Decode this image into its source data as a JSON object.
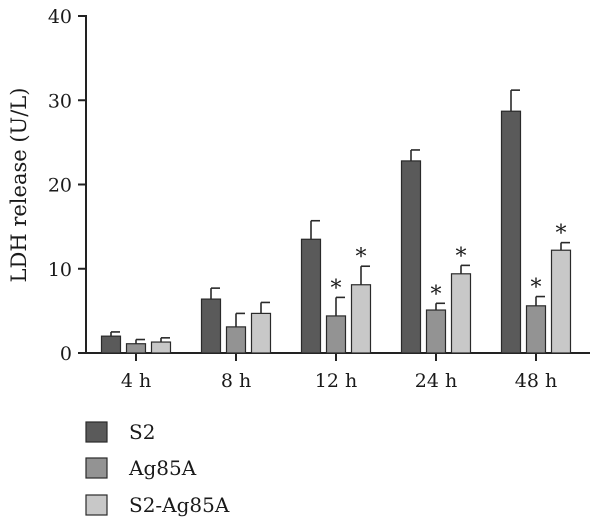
{
  "chart_data": {
    "type": "bar",
    "title": "",
    "xlabel": "",
    "ylabel": "LDH release (U/L)",
    "ylim": [
      0,
      40
    ],
    "yticks": [
      "0",
      "10",
      "20",
      "30",
      "40"
    ],
    "categories": [
      "4 h",
      "8 h",
      "12 h",
      "24 h",
      "48 h"
    ],
    "series": [
      {
        "name": "S2",
        "color": "#5a5a5a",
        "values": [
          2.0,
          6.4,
          13.5,
          22.8,
          28.7
        ],
        "errors": [
          0.5,
          1.3,
          2.2,
          1.3,
          2.5
        ],
        "significant": [
          false,
          false,
          false,
          false,
          false
        ]
      },
      {
        "name": "Ag85A",
        "color": "#939393",
        "values": [
          1.1,
          3.1,
          4.4,
          5.1,
          5.6
        ],
        "errors": [
          0.5,
          1.6,
          2.2,
          0.8,
          1.1
        ],
        "significant": [
          false,
          false,
          true,
          true,
          true
        ]
      },
      {
        "name": "S2-Ag85A",
        "color": "#c8c8c8",
        "values": [
          1.3,
          4.7,
          8.1,
          9.4,
          12.2
        ],
        "errors": [
          0.5,
          1.3,
          2.2,
          1.0,
          0.9
        ],
        "significant": [
          false,
          false,
          true,
          true,
          true
        ]
      }
    ],
    "significance_marker": "*",
    "legend_position": "bottom-left",
    "grid": false
  }
}
